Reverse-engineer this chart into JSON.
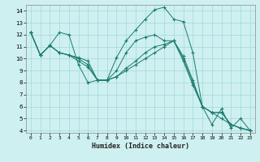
{
  "xlabel": "Humidex (Indice chaleur)",
  "bg_color": "#cff0f0",
  "grid_color": "#a0d8d8",
  "line_color": "#1a7a6e",
  "xlim": [
    -0.5,
    23.5
  ],
  "ylim": [
    3.8,
    14.5
  ],
  "yticks": [
    4,
    5,
    6,
    7,
    8,
    9,
    10,
    11,
    12,
    13,
    14
  ],
  "xticks": [
    0,
    1,
    2,
    3,
    4,
    5,
    6,
    7,
    8,
    9,
    10,
    11,
    12,
    13,
    14,
    15,
    16,
    17,
    18,
    19,
    20,
    21,
    22,
    23
  ],
  "series": [
    {
      "x": [
        0,
        1,
        2,
        3,
        4,
        5,
        6,
        7,
        8,
        9,
        10,
        11,
        12,
        13,
        14,
        15,
        16,
        17,
        18,
        19,
        20,
        21,
        22,
        23
      ],
      "y": [
        12.2,
        10.3,
        11.1,
        12.2,
        12.0,
        9.5,
        8.0,
        8.2,
        8.2,
        10.1,
        11.5,
        12.4,
        13.3,
        14.1,
        14.3,
        13.3,
        13.1,
        10.5,
        6.0,
        4.5,
        5.8,
        4.2,
        5.0,
        4.0
      ]
    },
    {
      "x": [
        0,
        1,
        2,
        3,
        4,
        5,
        6,
        7,
        8,
        9,
        10,
        11,
        12,
        13,
        14,
        15,
        16,
        17,
        18,
        19,
        20,
        21,
        22,
        23
      ],
      "y": [
        12.2,
        10.3,
        11.1,
        10.5,
        10.3,
        10.1,
        9.8,
        8.2,
        8.2,
        8.5,
        9.0,
        9.5,
        10.0,
        10.5,
        11.0,
        11.5,
        10.2,
        8.2,
        6.0,
        5.5,
        5.0,
        4.5,
        4.2,
        4.0
      ]
    },
    {
      "x": [
        0,
        1,
        2,
        3,
        4,
        5,
        6,
        7,
        8,
        9,
        10,
        11,
        12,
        13,
        14,
        15,
        16,
        17,
        18,
        19,
        20,
        21,
        22,
        23
      ],
      "y": [
        12.2,
        10.3,
        11.1,
        10.5,
        10.3,
        10.0,
        9.5,
        8.2,
        8.2,
        8.5,
        9.2,
        9.8,
        10.5,
        11.0,
        11.2,
        11.5,
        10.0,
        8.0,
        6.0,
        5.5,
        5.5,
        4.5,
        4.2,
        4.0
      ]
    },
    {
      "x": [
        0,
        1,
        2,
        3,
        4,
        5,
        6,
        7,
        8,
        9,
        10,
        11,
        12,
        13,
        14,
        15,
        16,
        17,
        18,
        19,
        20,
        21,
        22,
        23
      ],
      "y": [
        12.2,
        10.3,
        11.1,
        10.5,
        10.3,
        9.8,
        9.3,
        8.2,
        8.2,
        9.0,
        10.5,
        11.5,
        11.8,
        12.0,
        11.5,
        11.5,
        9.8,
        7.8,
        6.0,
        5.5,
        5.5,
        4.5,
        4.2,
        4.0
      ]
    }
  ]
}
